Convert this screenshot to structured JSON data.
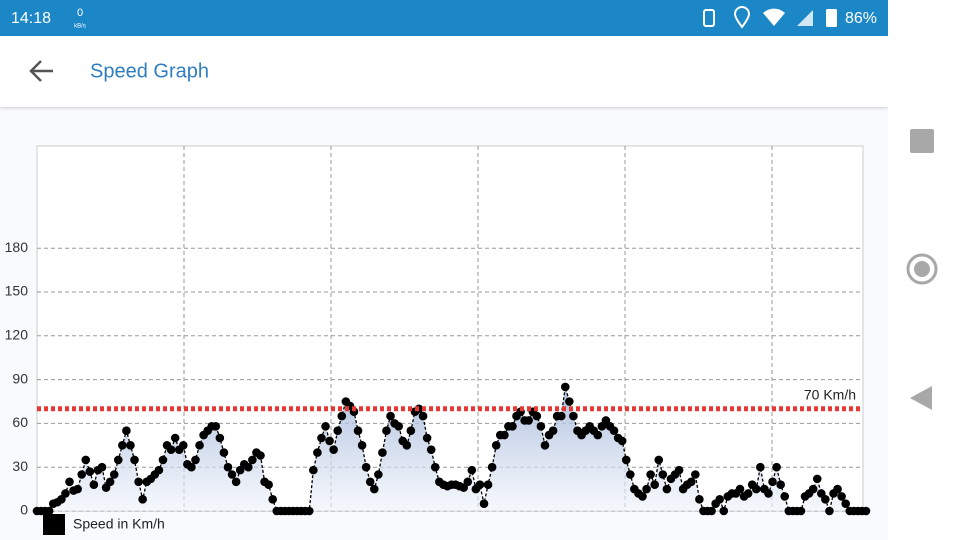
{
  "status_bar": {
    "time": "14:18",
    "net_speed": "0",
    "net_unit": "kB/s",
    "battery": "86%"
  },
  "app_bar": {
    "title": "Speed Graph"
  },
  "chart_data": {
    "type": "line",
    "series": [
      {
        "name": "Speed in Km/h",
        "color": "#000000",
        "values": [
          0,
          0,
          0,
          0,
          5,
          6,
          8,
          12,
          20,
          14,
          15,
          25,
          35,
          27,
          18,
          28,
          30,
          16,
          20,
          25,
          35,
          45,
          55,
          45,
          35,
          20,
          8,
          20,
          22,
          25,
          28,
          35,
          45,
          42,
          50,
          42,
          45,
          32,
          30,
          35,
          45,
          52,
          55,
          58,
          58,
          50,
          40,
          30,
          25,
          20,
          28,
          32,
          30,
          35,
          40,
          38,
          20,
          18,
          8,
          0,
          0,
          0,
          0,
          0,
          0,
          0,
          0,
          0,
          28,
          40,
          50,
          58,
          48,
          42,
          55,
          65,
          75,
          72,
          68,
          55,
          45,
          30,
          20,
          15,
          25,
          40,
          55,
          65,
          60,
          58,
          48,
          45,
          55,
          68,
          70,
          65,
          50,
          42,
          30,
          20,
          18,
          17,
          18,
          18,
          17,
          16,
          20,
          28,
          15,
          18,
          5,
          18,
          30,
          45,
          52,
          52,
          58,
          58,
          65,
          68,
          62,
          62,
          68,
          65,
          58,
          45,
          52,
          55,
          65,
          65,
          85,
          75,
          65,
          55,
          52,
          55,
          58,
          55,
          52,
          58,
          62,
          58,
          55,
          50,
          48,
          35,
          25,
          15,
          12,
          10,
          15,
          25,
          18,
          35,
          25,
          15,
          22,
          25,
          28,
          15,
          18,
          20,
          25,
          8,
          0,
          0,
          0,
          5,
          8,
          0,
          10,
          12,
          12,
          15,
          10,
          12,
          18,
          15,
          30,
          15,
          12,
          20,
          30,
          18,
          10,
          0,
          0,
          0,
          0,
          10,
          12,
          15,
          22,
          12,
          8,
          0,
          12,
          15,
          10,
          5,
          0,
          0,
          0,
          0,
          0
        ]
      }
    ],
    "ylim": [
      0,
      250
    ],
    "yticks": [
      0,
      30,
      60,
      90,
      120,
      150,
      180
    ],
    "grid": true,
    "limit_line": {
      "value": 70,
      "label": "70 Km/h",
      "color": "#e53935"
    }
  }
}
